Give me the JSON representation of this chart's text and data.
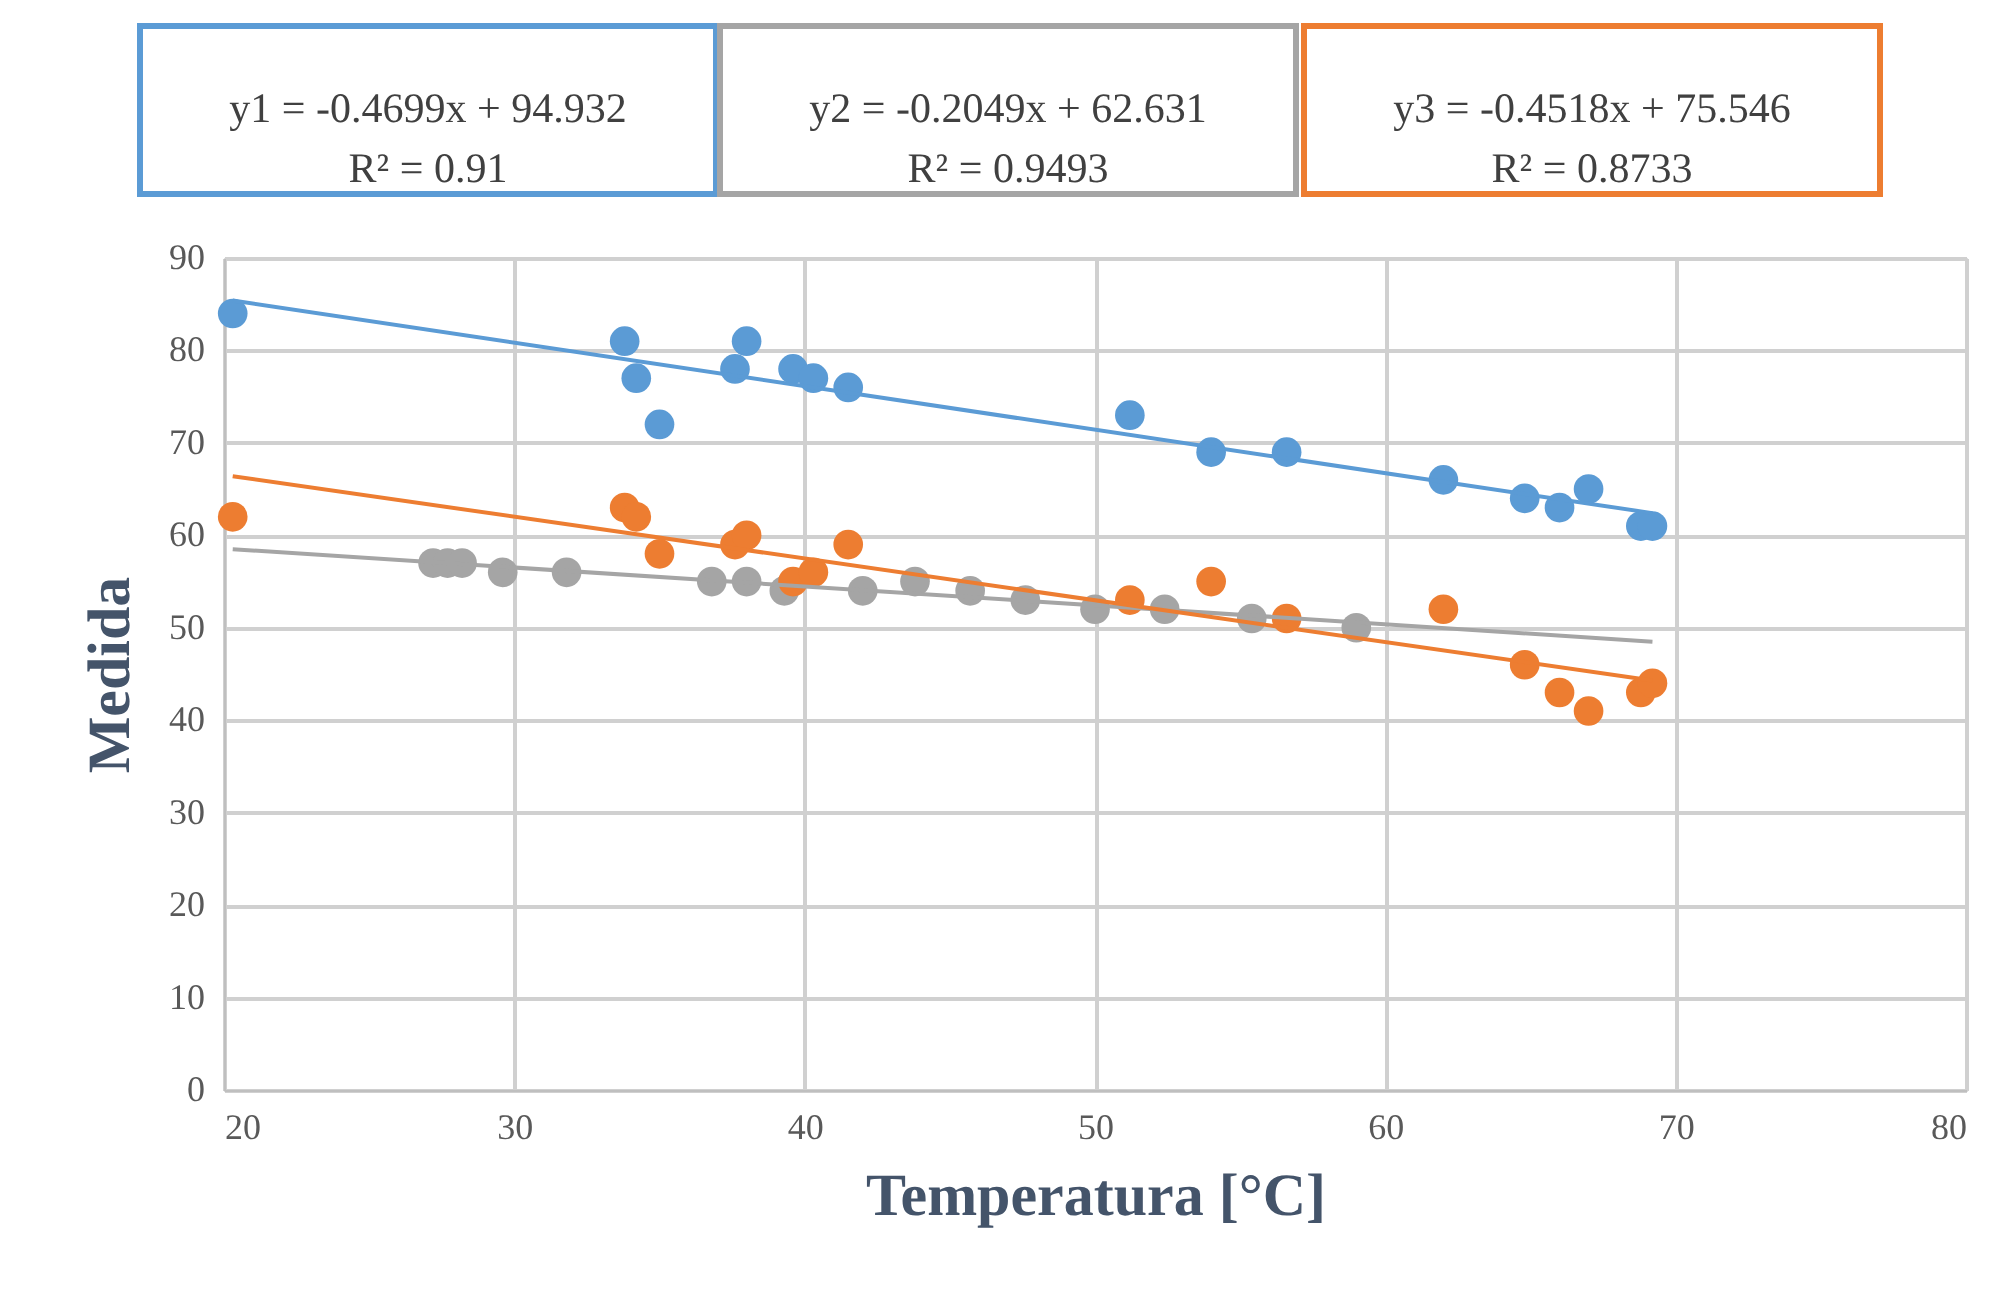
{
  "chart_data": {
    "type": "scatter",
    "xlabel": "Temperatura [°C]",
    "ylabel": "Medida",
    "xlim": [
      20,
      80
    ],
    "xticks": [
      20,
      30,
      40,
      50,
      60,
      70,
      80
    ],
    "ylim": [
      0,
      90
    ],
    "yticks": [
      0,
      10,
      20,
      30,
      40,
      50,
      60,
      70,
      80,
      90
    ],
    "grid": true,
    "marker": "circle",
    "annotations": [
      "y1 = -0.4699x + 94.932\nR² = 0.91",
      "y2 = -0.2049x + 62.631\nR² = 0.9493",
      "y3 = -0.4518x + 75.546\nR² = 0.8733"
    ],
    "series": [
      {
        "color": "#5b9bd5",
        "x": [
          20.3,
          33.8,
          34.2,
          35,
          37.6,
          38,
          39.6,
          40.3,
          41.5,
          51.2,
          54,
          56.6,
          62,
          64.8,
          66,
          67,
          68.8,
          69.2
        ],
        "values": [
          84,
          81,
          77,
          72,
          78,
          81,
          78,
          77,
          76,
          73,
          69,
          69,
          66,
          64,
          63,
          65,
          61,
          61
        ]
      },
      {
        "color": "#a5a5a5",
        "x": [
          27.2,
          27.7,
          28.2,
          29.6,
          31.8,
          36.8,
          38,
          39.3,
          42,
          43.8,
          45.7,
          47.6,
          50,
          52.4,
          55.4,
          59
        ],
        "values": [
          57,
          57,
          57,
          56,
          56,
          55,
          55,
          54,
          54,
          55,
          54,
          53,
          52,
          52,
          51,
          50
        ]
      },
      {
        "color": "#ed7d31",
        "x": [
          20.3,
          33.8,
          34.2,
          35,
          37.6,
          38,
          39.6,
          40.3,
          41.5,
          51.2,
          54,
          56.6,
          62,
          64.8,
          66,
          67,
          68.8,
          69.2
        ],
        "values": [
          62,
          63,
          62,
          58,
          59,
          60,
          55,
          56,
          59,
          53,
          55,
          51,
          52,
          46,
          43,
          41,
          43,
          44
        ]
      },
      {
        "type": "line",
        "marker": "none",
        "color": "#5b9bd5",
        "x": [
          20.3,
          69.2
        ],
        "values": [
          85.4,
          62.4
        ]
      },
      {
        "type": "line",
        "marker": "none",
        "color": "#a5a5a5",
        "x": [
          20.3,
          69.2
        ],
        "values": [
          58.5,
          48.5
        ]
      },
      {
        "type": "line",
        "marker": "none",
        "color": "#ed7d31",
        "x": [
          20.3,
          69.2
        ],
        "values": [
          66.4,
          44.3
        ]
      }
    ]
  }
}
